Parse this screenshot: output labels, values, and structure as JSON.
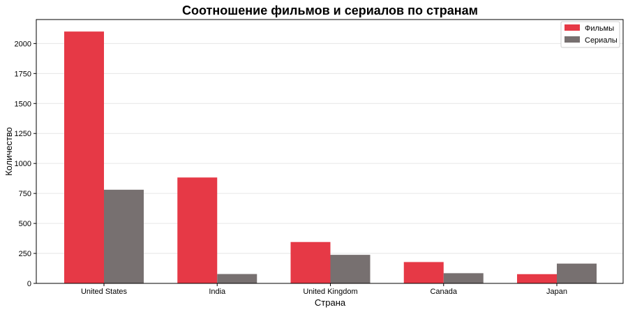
{
  "chart_data": {
    "type": "bar",
    "title": "Соотношение фильмов и сериалов по странам",
    "xlabel": "Страна",
    "ylabel": "Количество",
    "categories": [
      "United States",
      "India",
      "United Kingdom",
      "Canada",
      "Japan"
    ],
    "series": [
      {
        "name": "Фильмы",
        "color": "#e63946",
        "values": [
          2100,
          883,
          345,
          178,
          77
        ]
      },
      {
        "name": "Сериалы",
        "color": "#777070",
        "values": [
          781,
          78,
          238,
          85,
          165
        ]
      }
    ],
    "ylim": [
      0,
      2200
    ],
    "yticks": [
      0,
      250,
      500,
      750,
      1000,
      1250,
      1500,
      1750,
      2000
    ],
    "grid": "horizontal",
    "legend_position": "top-right"
  }
}
